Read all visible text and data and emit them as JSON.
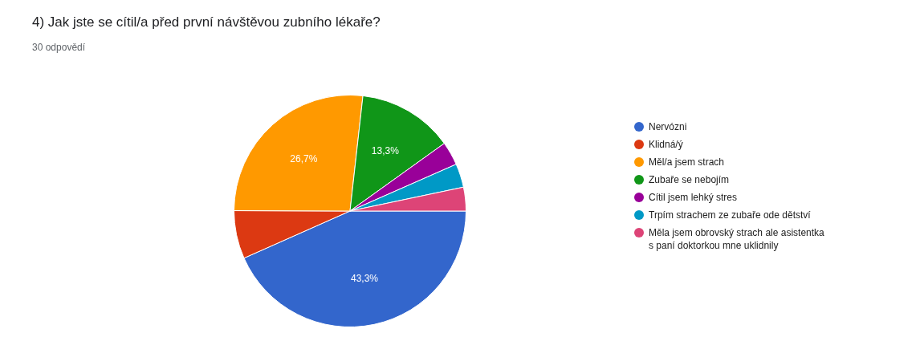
{
  "chart_data": {
    "type": "pie",
    "title": "4) Jak jste se cítil/a před první návštěvou zubního lékaře?",
    "subtitle": "30 odpovědí",
    "categories": [
      "Nervózni",
      "Klidná/ý",
      "Měl/a jsem strach",
      "Zubaře se nebojím",
      "Cítil jsem lehký stres",
      "Trpím strachem ze zubaře ode dětství",
      "Měla jsem obrovský strach ale asistentka s paní doktorkou mne uklidnily"
    ],
    "values": [
      43.3,
      6.7,
      26.7,
      13.3,
      3.3,
      3.3,
      3.3
    ],
    "colors": [
      "#3366cc",
      "#dc3912",
      "#ff9900",
      "#109618",
      "#990099",
      "#0099c6",
      "#dd4477"
    ],
    "value_labels": [
      "43,3%",
      null,
      "26,7%",
      "13,3%",
      null,
      null,
      null
    ],
    "legend": "right"
  }
}
